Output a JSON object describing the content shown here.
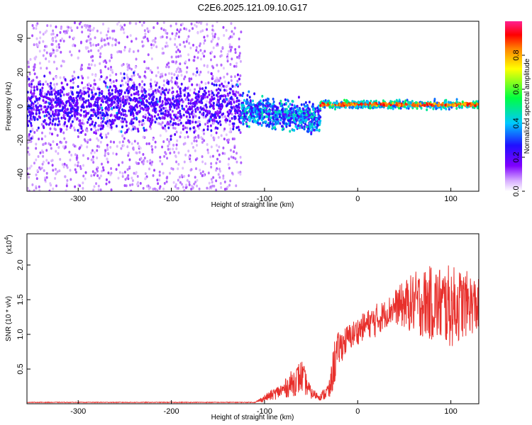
{
  "title": "C2E6.2025.121.09.10.G17",
  "colors": {
    "snr_line": "#e8302c",
    "colormap": [
      "#ffffff",
      "#a020f0",
      "#3b00ff",
      "#00c8ff",
      "#00ff40",
      "#ffff00",
      "#ff8000",
      "#ff0000",
      "#ff2090"
    ]
  },
  "chart_data": [
    {
      "type": "heatmap",
      "title": "",
      "xlabel": "Height of straight line (km)",
      "ylabel": "Frequency (Hz)",
      "xlim": [
        -355,
        130
      ],
      "ylim": [
        -50,
        50
      ],
      "x_ticks": [
        -300,
        -200,
        -100,
        0,
        100
      ],
      "x_tick_labels": [
        "-300",
        "-200",
        "-100",
        "0",
        "100"
      ],
      "y_ticks": [
        -40,
        -20,
        0,
        20,
        40
      ],
      "y_tick_labels": [
        "-40",
        "-20",
        "0",
        "20",
        "40"
      ],
      "colorbar": {
        "label": "Normalized spectral amplitude",
        "range": [
          0,
          1
        ],
        "ticks": [
          0.0,
          0.2,
          0.4,
          0.6,
          0.8
        ],
        "tick_labels": [
          "0.0",
          "0.2",
          "0.4",
          "0.6",
          "0.8"
        ]
      },
      "regions": [
        {
          "x_range": [
            -355,
            -125
          ],
          "freq_spread_hz": 50,
          "core_band_hz": [
            -10,
            10
          ],
          "typical_amplitude": 0.15,
          "description_level": "noise"
        },
        {
          "x_range": [
            -125,
            -40
          ],
          "freq_spread_hz": 20,
          "core_band_hz": [
            -10,
            6
          ],
          "typical_amplitude": 0.3
        },
        {
          "x_range": [
            -40,
            130
          ],
          "freq_spread_hz": 4,
          "core_band_hz": [
            -1,
            4
          ],
          "typical_amplitude": 0.85
        }
      ]
    },
    {
      "type": "line",
      "title": "",
      "xlabel": "Height of straight line (km)",
      "ylabel": "SNR (10 * v/v)",
      "y_multiplier_label": "(x10",
      "y_multiplier_exp": "4",
      "y_multiplier_close": ")",
      "xlim": [
        -355,
        130
      ],
      "ylim": [
        0,
        2.45
      ],
      "x_ticks": [
        -300,
        -200,
        -100,
        0,
        100
      ],
      "x_tick_labels": [
        "-300",
        "-200",
        "-100",
        "0",
        "100"
      ],
      "y_ticks": [
        0.5,
        1.0,
        1.5,
        2.0
      ],
      "y_tick_labels": [
        "0.5",
        "1.0",
        "1.5",
        "2.0"
      ],
      "series": [
        {
          "envelope_x": [
            -355,
            -110,
            -100,
            -80,
            -70,
            -60,
            -50,
            -40,
            -30,
            -25,
            -20,
            -10,
            0,
            10,
            20,
            30,
            40,
            60,
            80,
            100,
            120,
            130
          ],
          "envelope_y": [
            0.02,
            0.02,
            0.08,
            0.2,
            0.3,
            0.4,
            0.15,
            0.1,
            0.2,
            0.6,
            0.8,
            0.95,
            1.05,
            1.15,
            1.2,
            1.3,
            1.4,
            1.45,
            1.45,
            1.4,
            1.45,
            1.4
          ],
          "noise_amplitude": [
            0.005,
            0.005,
            0.05,
            0.12,
            0.2,
            0.25,
            0.08,
            0.05,
            0.15,
            0.35,
            0.25,
            0.2,
            0.2,
            0.2,
            0.25,
            0.2,
            0.25,
            0.45,
            0.55,
            0.6,
            0.45,
            0.4
          ]
        }
      ]
    }
  ]
}
